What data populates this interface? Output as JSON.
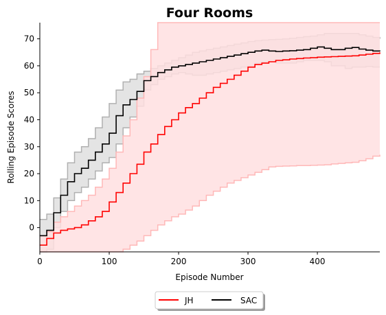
{
  "chart_data": {
    "type": "line",
    "title": "Four Rooms",
    "xlabel": "Episode Number",
    "ylabel": "Rolling Episode Scores",
    "xlim": [
      0,
      490
    ],
    "ylim": [
      -9,
      76
    ],
    "xticks": [
      0,
      100,
      200,
      300,
      400
    ],
    "yticks": [
      0,
      10,
      20,
      30,
      40,
      50,
      60,
      70
    ],
    "grid": false,
    "legend_position": "bottom-center",
    "series": [
      {
        "name": "JH",
        "color": "#ff0000",
        "band_color": "#ffdfe0",
        "band_edge_color": "#ffb8b8",
        "x": [
          0,
          10,
          20,
          30,
          40,
          50,
          60,
          70,
          80,
          90,
          100,
          110,
          120,
          130,
          140,
          150,
          160,
          170,
          180,
          190,
          200,
          210,
          220,
          230,
          240,
          250,
          260,
          270,
          280,
          290,
          300,
          310,
          320,
          330,
          340,
          350,
          360,
          370,
          380,
          390,
          400,
          410,
          420,
          430,
          440,
          450,
          460,
          470,
          480,
          490
        ],
        "mean": [
          -6.5,
          -4,
          -2,
          -1,
          -0.5,
          0,
          1,
          2.5,
          4,
          6,
          9.5,
          13,
          16.5,
          20,
          23.5,
          28,
          31,
          34.5,
          37.5,
          40,
          42.5,
          44.5,
          46,
          48,
          50,
          52,
          53.5,
          55,
          56.5,
          58,
          59.5,
          60.5,
          61,
          61.5,
          62,
          62.2,
          62.5,
          62.7,
          62.9,
          63,
          63.2,
          63.3,
          63.4,
          63.5,
          63.6,
          63.7,
          64,
          64.3,
          64.6,
          65
        ],
        "upper": [
          -3,
          -1.5,
          2,
          4,
          6,
          8,
          10,
          12,
          15,
          18,
          22,
          28,
          34,
          40,
          48,
          56,
          66,
          78,
          78,
          78,
          78,
          78,
          78,
          78,
          78,
          78,
          78,
          78,
          78,
          78,
          78,
          78,
          78,
          78,
          78,
          78,
          78,
          78,
          78,
          78,
          78,
          78,
          78,
          78,
          78,
          78,
          78,
          78,
          78,
          78
        ],
        "lower": [
          -10,
          -10,
          -10,
          -10,
          -10,
          -10,
          -10,
          -10,
          -10,
          -10,
          -10,
          -9,
          -8,
          -6.5,
          -5,
          -3,
          -1,
          1,
          2.5,
          4,
          5,
          6.5,
          8,
          10,
          12,
          13.5,
          15,
          16.5,
          17.5,
          18.5,
          19.5,
          20.5,
          21.5,
          22.5,
          22.7,
          22.8,
          22.9,
          23,
          23,
          23.1,
          23.2,
          23.3,
          23.6,
          23.8,
          24,
          24.2,
          24.8,
          25.5,
          26.5,
          27
        ]
      },
      {
        "name": "SAC",
        "color": "#000000",
        "band_color": "#d9d9d9",
        "band_edge_color": "#b0b0b0",
        "x": [
          0,
          10,
          20,
          30,
          40,
          50,
          60,
          70,
          80,
          90,
          100,
          110,
          120,
          130,
          140,
          150,
          160,
          170,
          180,
          190,
          200,
          210,
          220,
          230,
          240,
          250,
          260,
          270,
          280,
          290,
          300,
          310,
          320,
          330,
          340,
          350,
          360,
          370,
          380,
          390,
          400,
          410,
          420,
          430,
          440,
          450,
          460,
          470,
          480,
          490
        ],
        "mean": [
          -3,
          -1,
          5.5,
          12,
          17,
          20,
          22,
          25,
          28,
          31,
          35,
          41.5,
          45.5,
          47.5,
          50.5,
          54.5,
          56,
          57.5,
          58.5,
          59.5,
          60,
          60.5,
          61,
          61.5,
          62,
          62.5,
          63,
          63.5,
          64,
          64.5,
          65,
          65.5,
          65.8,
          65.5,
          65.3,
          65.5,
          65.6,
          65.8,
          66,
          66.5,
          67,
          66.5,
          66,
          66,
          66.5,
          66.8,
          66.2,
          65.8,
          65.5,
          65.3
        ],
        "upper": [
          3,
          5,
          11,
          18,
          24,
          28,
          30,
          33,
          37,
          41,
          46,
          51,
          54,
          55,
          57,
          58,
          59,
          60,
          61,
          62,
          63,
          64,
          65,
          65.5,
          66,
          66.5,
          67,
          67.5,
          68,
          68.5,
          69,
          69.3,
          69.5,
          69.7,
          69.8,
          70,
          70.2,
          70.5,
          70.8,
          71,
          71.5,
          72,
          72,
          72,
          72,
          72,
          71.5,
          71,
          70.5,
          70
        ],
        "lower": [
          -9,
          -8,
          0,
          6,
          10,
          13,
          15,
          18,
          21,
          24,
          26,
          31,
          37,
          41,
          45,
          51,
          53,
          55,
          56,
          57,
          57.5,
          57,
          56.5,
          56.5,
          57,
          57.5,
          58,
          58.5,
          59,
          59.5,
          60,
          61,
          61.5,
          61.5,
          61,
          61,
          61,
          61.5,
          62,
          62,
          62,
          61.5,
          60,
          60,
          59,
          59.5,
          59.5,
          59.8,
          59.5,
          59.5
        ]
      }
    ]
  }
}
